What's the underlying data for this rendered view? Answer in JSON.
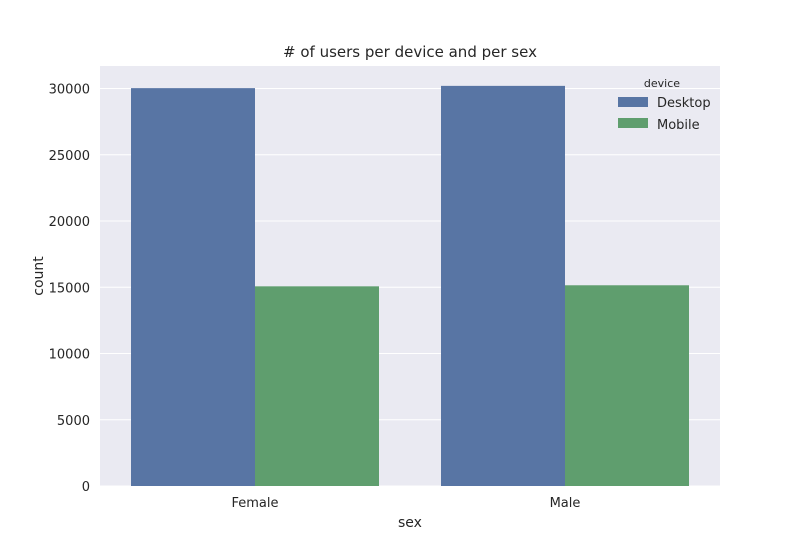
{
  "chart_data": {
    "type": "bar",
    "title": "# of users per device and per sex",
    "xlabel": "sex",
    "ylabel": "count",
    "categories": [
      "Female",
      "Male"
    ],
    "series": [
      {
        "name": "Desktop",
        "values": [
          30030,
          30200
        ],
        "color": "#5875a4"
      },
      {
        "name": "Mobile",
        "values": [
          15070,
          15150
        ],
        "color": "#5f9e6e"
      }
    ],
    "ylim": [
      0,
      31700
    ],
    "yticks": [
      0,
      5000,
      10000,
      15000,
      20000,
      25000,
      30000
    ],
    "grid": true,
    "legend": {
      "title": "device",
      "placement": "top-right"
    },
    "background": "#eaeaf2"
  }
}
